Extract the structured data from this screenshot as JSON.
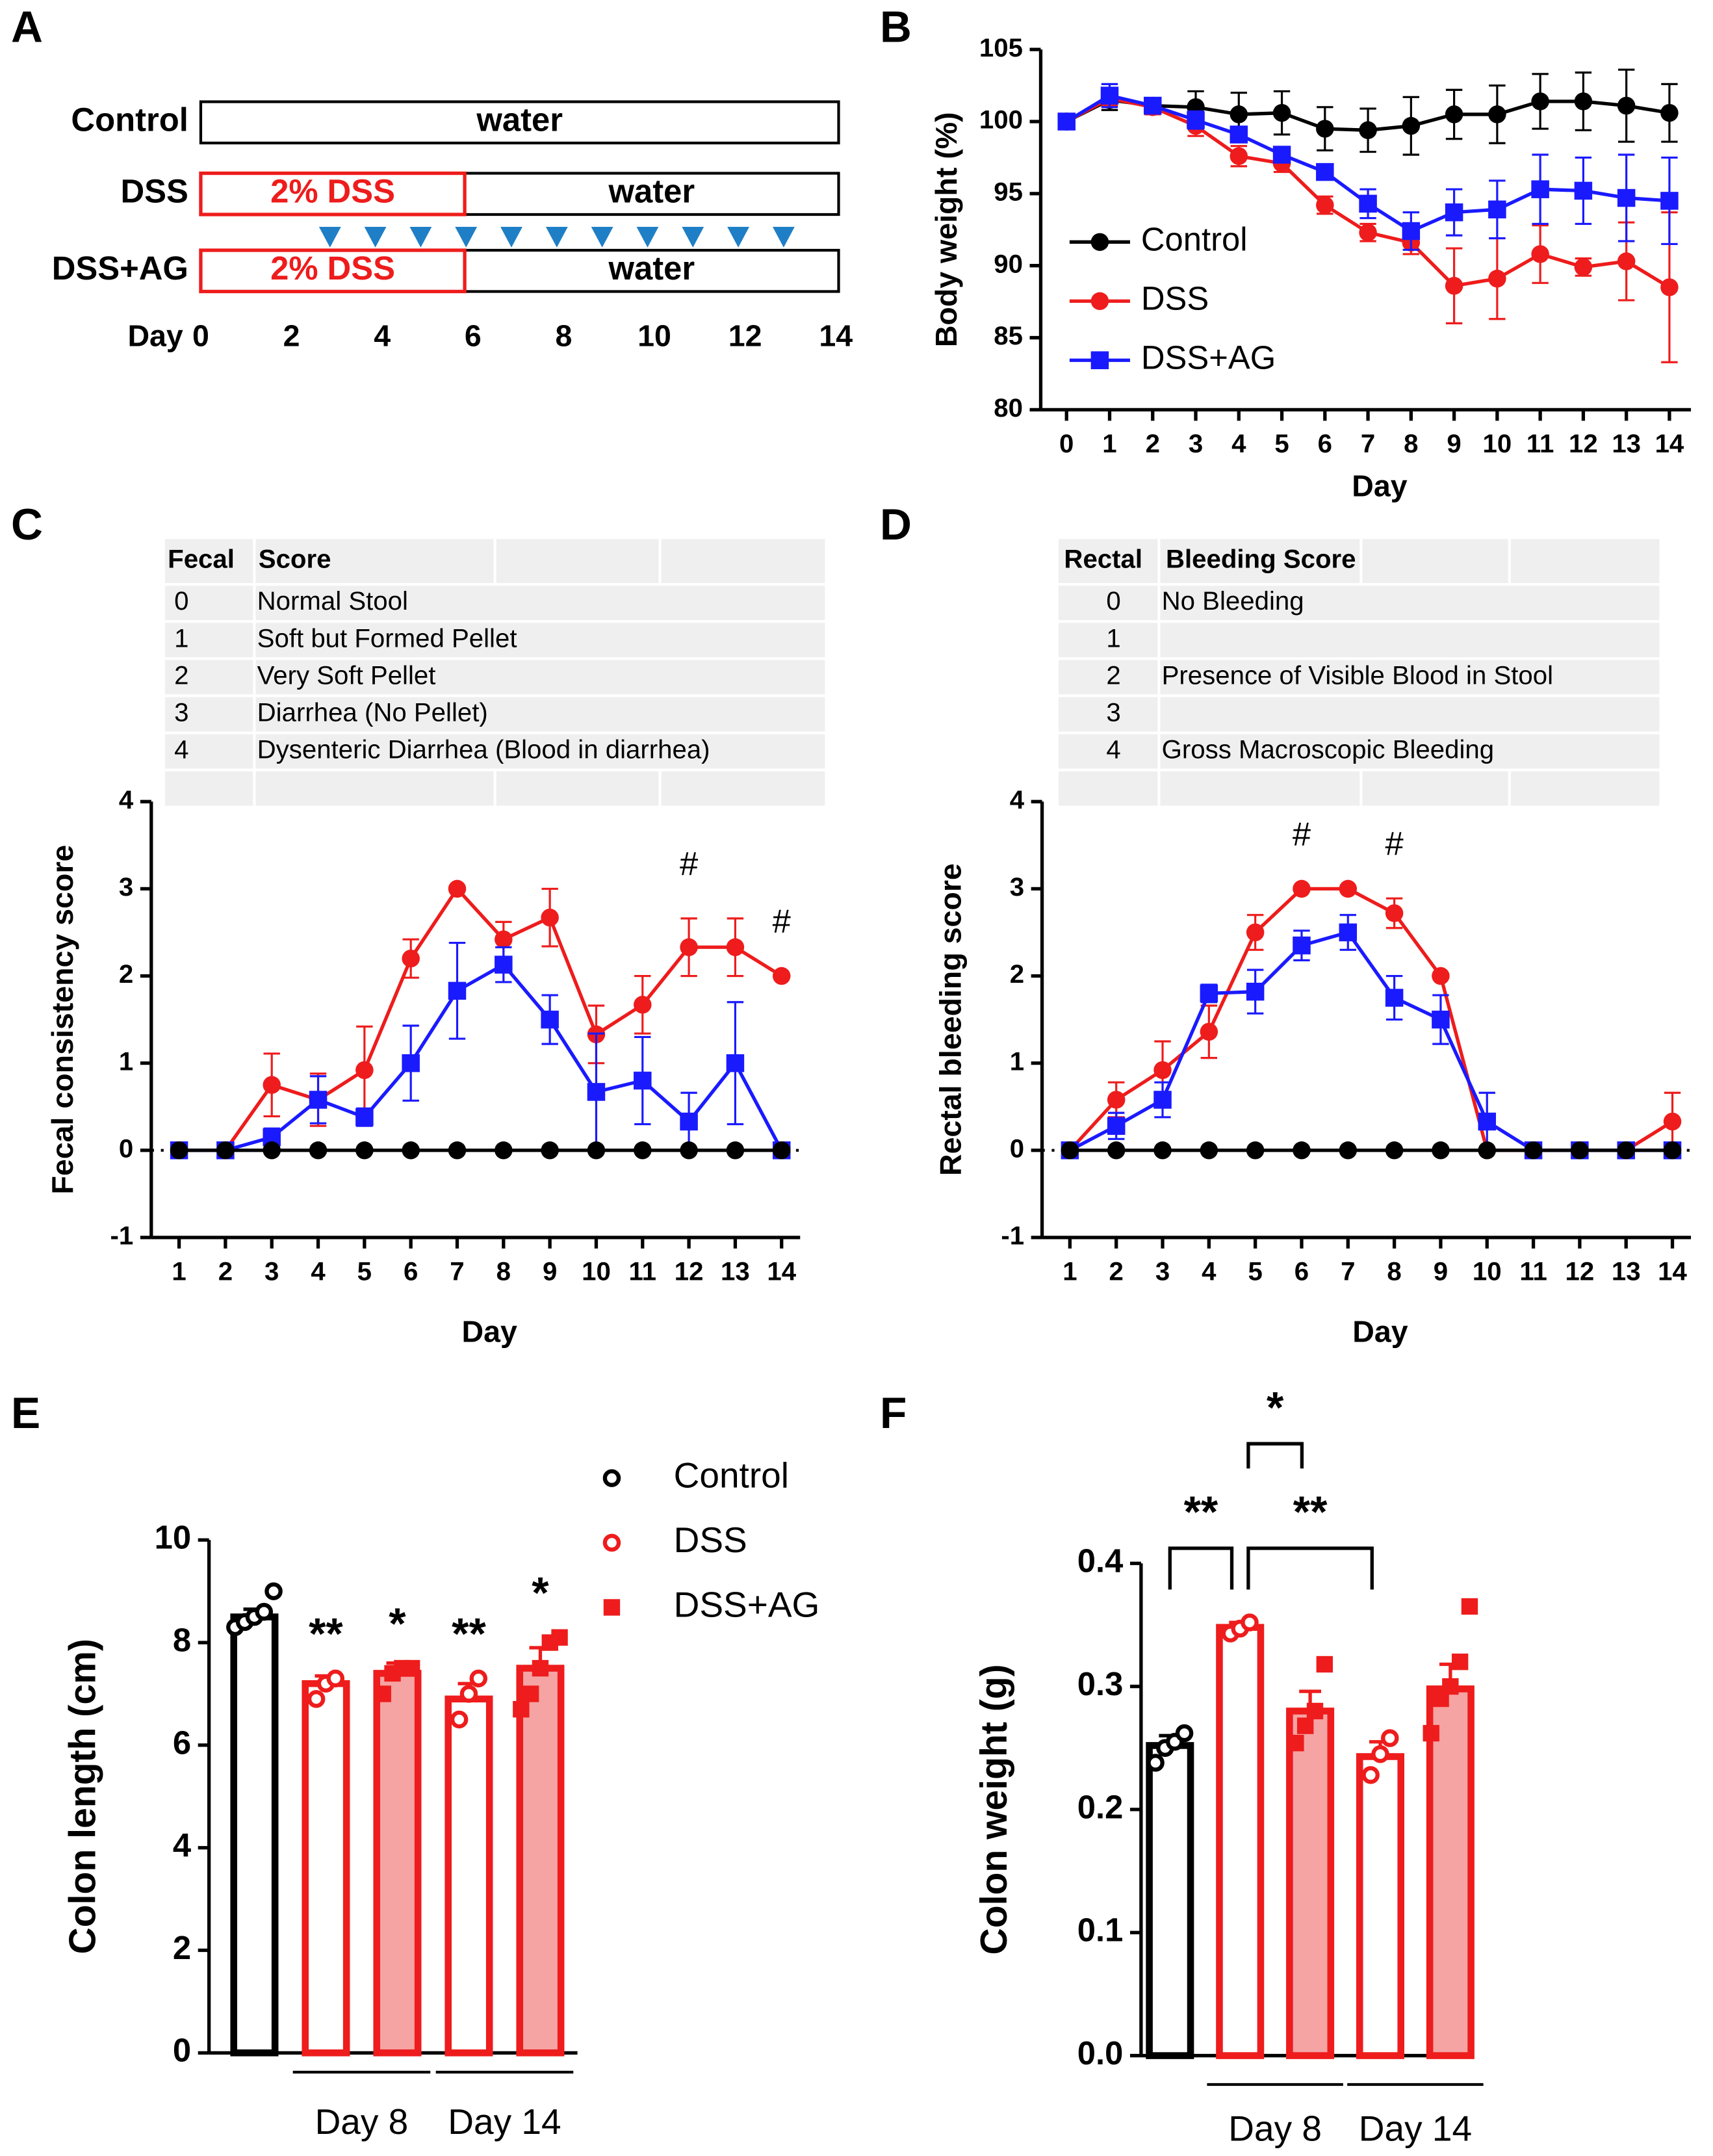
{
  "panel_labels": [
    "A",
    "B",
    "C",
    "D",
    "E",
    "F"
  ],
  "timeline": {
    "rows": [
      {
        "label": "Control",
        "segments": [
          "water"
        ]
      },
      {
        "label": "DSS",
        "segments": [
          "2% DSS",
          "water"
        ]
      },
      {
        "label": "DSS+AG",
        "segments": [
          "2% DSS",
          "water"
        ]
      }
    ],
    "axis_label": "Day",
    "ticks": [
      0,
      2,
      4,
      6,
      8,
      10,
      12,
      14
    ]
  },
  "fecal_table": {
    "header": [
      "Fecal",
      "Score"
    ],
    "rows": [
      [
        0,
        "Normal Stool"
      ],
      [
        1,
        "Soft but Formed Pellet"
      ],
      [
        2,
        "Very Soft Pellet"
      ],
      [
        3,
        "Diarrhea (No Pellet)"
      ],
      [
        4,
        "Dysenteric Diarrhea (Blood in diarrhea)"
      ]
    ]
  },
  "bleeding_table": {
    "header": [
      "Rectal",
      "Bleeding Score"
    ],
    "rows": [
      [
        0,
        "No Bleeding"
      ],
      [
        1
      ],
      [
        2,
        "Presence of Visible Blood in Stool"
      ],
      [
        3
      ],
      [
        4,
        "Gross Macroscopic Bleeding"
      ]
    ]
  },
  "chart_data": [
    {
      "type": "line",
      "xlabel": "Day",
      "ylabel": "Body weight (%)",
      "x": [
        0,
        1,
        2,
        3,
        4,
        5,
        6,
        7,
        8,
        9,
        10,
        11,
        12,
        13,
        14
      ],
      "xlim": [
        -0.6,
        14.5
      ],
      "xticks": [
        0,
        1,
        2,
        3,
        4,
        5,
        6,
        7,
        8,
        9,
        10,
        11,
        12,
        13,
        14
      ],
      "ylim": [
        80,
        105
      ],
      "yticks": [
        80,
        85,
        90,
        95,
        100,
        105
      ],
      "legend": "left",
      "series": [
        {
          "name": "Control",
          "color": "#000000",
          "marker": "circle",
          "values": [
            100,
            101.5,
            101.1,
            101,
            100.5,
            100.6,
            99.5,
            99.4,
            99.7,
            100.5,
            100.5,
            101.4,
            101.4,
            101.1,
            100.6
          ],
          "errors": [
            0.3,
            0.7,
            0.5,
            1.1,
            1.5,
            1.5,
            1.5,
            1.5,
            2,
            1.7,
            2,
            1.9,
            2,
            2.5,
            2
          ]
        },
        {
          "name": "DSS",
          "color": "#ee1c1c",
          "marker": "circle",
          "values": [
            100,
            101.6,
            101,
            99.7,
            97.6,
            97.1,
            94.2,
            92.3,
            91.6,
            88.6,
            89.1,
            90.8,
            89.9,
            90.3,
            88.5
          ],
          "errors": [
            0.2,
            0.5,
            0.5,
            0.7,
            0.7,
            0.6,
            0.6,
            0.6,
            0.8,
            2.6,
            2.8,
            2,
            0.6,
            2.7,
            5.2
          ]
        },
        {
          "name": "DSS+AG",
          "color": "#1a1aff",
          "marker": "square",
          "values": [
            100,
            101.8,
            101.1,
            100.1,
            99.1,
            97.7,
            96.5,
            94.3,
            92.4,
            93.7,
            93.9,
            95.3,
            95.2,
            94.7,
            94.5
          ],
          "errors": [
            0.2,
            0.8,
            0.5,
            0.6,
            0.5,
            0.5,
            0.4,
            1,
            1.3,
            1.6,
            2,
            2.4,
            2.3,
            3,
            3
          ]
        }
      ]
    },
    {
      "type": "line",
      "xlabel": "Day",
      "ylabel": "Fecal consistency score",
      "x": [
        1,
        2,
        3,
        4,
        5,
        6,
        7,
        8,
        9,
        10,
        11,
        12,
        13,
        14
      ],
      "xlim": [
        0.4,
        14.4
      ],
      "xticks": [
        1,
        2,
        3,
        4,
        5,
        6,
        7,
        8,
        9,
        10,
        11,
        12,
        13,
        14
      ],
      "ylim": [
        -1,
        4
      ],
      "yticks": [
        -1,
        0,
        1,
        2,
        3,
        4
      ],
      "reference_line": 0,
      "series": [
        {
          "color": "#ee1c1c",
          "marker": "circle",
          "values": [
            0,
            0,
            0.75,
            0.58,
            0.92,
            2.2,
            3,
            2.42,
            2.67,
            1.33,
            1.67,
            2.33,
            2.33,
            2
          ],
          "errors": [
            0,
            0,
            0.36,
            0.3,
            0.5,
            0.22,
            0,
            0.2,
            0.33,
            0.33,
            0.33,
            0.33,
            0.33,
            0
          ]
        },
        {
          "color": "#1a1aff",
          "marker": "square",
          "values": [
            0,
            0,
            0.15,
            0.58,
            0.38,
            1,
            1.83,
            2.13,
            1.5,
            0.67,
            0.8,
            0.33,
            1,
            0
          ],
          "errors": [
            0,
            0,
            0.1,
            0.27,
            0.1,
            0.43,
            0.55,
            0.2,
            0.28,
            0.67,
            0.5,
            0.33,
            0.7,
            0
          ]
        },
        {
          "color": "#000000",
          "marker": "circle",
          "values": [
            0,
            0,
            0,
            0,
            0,
            0,
            0,
            0,
            0,
            0,
            0,
            0,
            0,
            0
          ],
          "errors": [
            0,
            0,
            0,
            0,
            0,
            0,
            0,
            0,
            0,
            0,
            0,
            0,
            0,
            0
          ]
        }
      ],
      "annotations": [
        {
          "text": "#",
          "x": 12
        },
        {
          "text": "#",
          "x": 14
        }
      ]
    },
    {
      "type": "line",
      "xlabel": "Day",
      "ylabel": "Rectal bleeding score",
      "x": [
        1,
        2,
        3,
        4,
        5,
        6,
        7,
        8,
        9,
        10,
        11,
        12,
        13,
        14
      ],
      "xlim": [
        0.4,
        14.4
      ],
      "xticks": [
        1,
        2,
        3,
        4,
        5,
        6,
        7,
        8,
        9,
        10,
        11,
        12,
        13,
        14
      ],
      "ylim": [
        -1,
        4
      ],
      "yticks": [
        -1,
        0,
        1,
        2,
        3,
        4
      ],
      "reference_line": 0,
      "series": [
        {
          "color": "#ee1c1c",
          "marker": "circle",
          "values": [
            0,
            0.58,
            0.92,
            1.36,
            2.5,
            3,
            3,
            2.72,
            2,
            0,
            0,
            0,
            0,
            0.33
          ],
          "errors": [
            0,
            0.2,
            0.33,
            0.3,
            0.2,
            0,
            0,
            0.17,
            0,
            0,
            0,
            0,
            0,
            0.33
          ]
        },
        {
          "color": "#1a1aff",
          "marker": "square",
          "values": [
            0,
            0.28,
            0.58,
            1.8,
            1.82,
            2.35,
            2.5,
            1.75,
            1.5,
            0.33,
            0,
            0,
            0,
            0
          ],
          "errors": [
            0,
            0.15,
            0.2,
            0.1,
            0.25,
            0.17,
            0.2,
            0.25,
            0.28,
            0.33,
            0,
            0,
            0,
            0
          ]
        },
        {
          "color": "#000000",
          "marker": "circle",
          "values": [
            0,
            0,
            0,
            0,
            0,
            0,
            0,
            0,
            0,
            0,
            0,
            0,
            0,
            0
          ],
          "errors": [
            0,
            0,
            0,
            0,
            0,
            0,
            0,
            0,
            0,
            0,
            0,
            0,
            0,
            0
          ]
        }
      ],
      "annotations": [
        {
          "text": "#",
          "x": 6
        },
        {
          "text": "#",
          "x": 8
        }
      ]
    },
    {
      "type": "bar",
      "ylabel": "Colon length (cm)",
      "categories": [
        null,
        null,
        null,
        null,
        null
      ],
      "ylim": [
        0,
        10
      ],
      "yticks": [
        0,
        2,
        4,
        6,
        8,
        10
      ],
      "legend": "right",
      "series": [
        {
          "name": "Control",
          "color": "#000000",
          "fill": "#ffffff",
          "marker": "open-circle",
          "values": [
            8.5,
            null,
            null,
            null,
            null
          ],
          "errors": [
            0.15,
            null,
            null,
            null,
            null
          ],
          "points": [
            [
              8.3,
              8.4,
              8.5,
              8.6,
              9.0
            ],
            null,
            null,
            null,
            null
          ]
        },
        {
          "name": "DSS",
          "color": "#ee1c1c",
          "fill": "#ffffff",
          "marker": "open-circle",
          "values": [
            null,
            7.2,
            null,
            6.9,
            null
          ],
          "errors": [
            null,
            0.15,
            null,
            0.3,
            null
          ],
          "points": [
            null,
            [
              6.9,
              7.2,
              7.3
            ],
            null,
            [
              6.5,
              7.0,
              7.3
            ],
            null
          ]
        },
        {
          "name": "DSS+AG",
          "color": "#ee1c1c",
          "fill": "#f5a3a3",
          "marker": "square",
          "values": [
            null,
            null,
            7.4,
            null,
            7.5
          ],
          "errors": [
            null,
            null,
            0.2,
            null,
            0.4
          ],
          "points": [
            null,
            null,
            [
              7.0,
              7.4,
              7.5,
              7.5
            ],
            null,
            [
              6.7,
              7.0,
              7.5,
              8.0,
              8.1
            ]
          ]
        }
      ],
      "groups": [
        {
          "label": "Day 8",
          "categories": [
            1,
            2
          ]
        },
        {
          "label": "Day 14",
          "categories": [
            3,
            4
          ]
        }
      ],
      "annotations": [
        {
          "text": "**",
          "category": 1
        },
        {
          "text": "*",
          "category": 2
        },
        {
          "text": "**",
          "category": 3
        },
        {
          "text": "*",
          "category": 4
        }
      ]
    },
    {
      "type": "bar",
      "ylabel": "Colon weight (g)",
      "categories": [
        null,
        null,
        null,
        null,
        null
      ],
      "ylim": [
        0,
        0.4
      ],
      "yticks": [
        {
          "value": 0,
          "label": "0.0"
        },
        0.1,
        0.2,
        0.3,
        0.4
      ],
      "series": [
        {
          "color": "#000000",
          "fill": "#ffffff",
          "marker": "open-circle",
          "values": [
            0.252,
            null,
            null,
            null,
            null
          ],
          "errors": [
            0.008,
            null,
            null,
            null,
            null
          ],
          "points": [
            [
              0.238,
              0.25,
              0.255,
              0.262
            ],
            null,
            null,
            null,
            null
          ]
        },
        {
          "color": "#ee1c1c",
          "fill": "#ffffff",
          "marker": "open-circle",
          "values": [
            null,
            0.348,
            null,
            0.243,
            null
          ],
          "errors": [
            null,
            0.004,
            null,
            0.012,
            null
          ],
          "points": [
            null,
            [
              0.343,
              0.347,
              0.352
            ],
            null,
            [
              0.228,
              0.245,
              0.258
            ],
            null
          ]
        },
        {
          "color": "#ee1c1c",
          "fill": "#f5a3a3",
          "marker": "square",
          "values": [
            null,
            null,
            0.28,
            null,
            0.298
          ],
          "errors": [
            null,
            null,
            0.016,
            null,
            0.02
          ],
          "points": [
            null,
            null,
            [
              0.254,
              0.268,
              0.28,
              0.318
            ],
            null,
            [
              0.262,
              0.29,
              0.3,
              0.32,
              0.365
            ]
          ]
        }
      ],
      "groups": [
        {
          "label": "Day 8",
          "categories": [
            1,
            2
          ]
        },
        {
          "label": "Day 14",
          "categories": [
            3,
            4
          ]
        }
      ],
      "brackets": [
        {
          "text": "**",
          "from": 0,
          "to": 1
        },
        {
          "text": "*",
          "from": 1,
          "to": 2
        },
        {
          "text": "**",
          "from": 1,
          "to": 3
        }
      ]
    }
  ]
}
